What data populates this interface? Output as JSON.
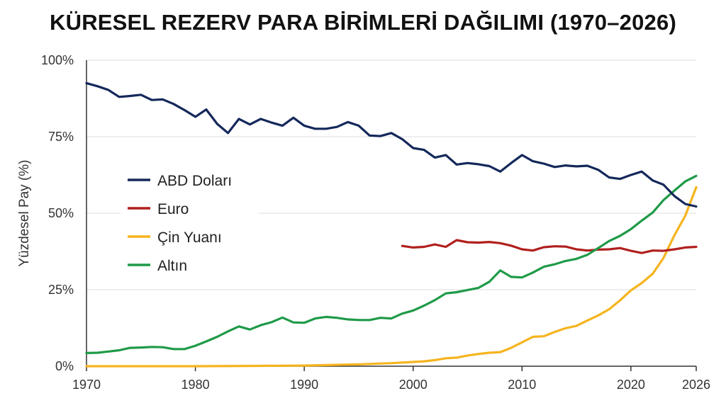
{
  "chart_data": {
    "type": "line",
    "title": "KÜRESEL REZERV PARA BİRİMLERİ DAĞILIMI (1970–2026)",
    "xlabel": "",
    "ylabel": "Yüzdesel Pay (%)",
    "xlim": [
      1970,
      2026
    ],
    "ylim": [
      0,
      100
    ],
    "x_ticks": [
      "1970",
      "1980",
      "1990",
      "2000",
      "2010",
      "2020",
      "2026"
    ],
    "y_ticks": [
      "0%",
      "25%",
      "50%",
      "75%",
      "100%"
    ],
    "grid": "horizontal",
    "legend_position": "center-left",
    "series": [
      {
        "name": "ABD Doları",
        "color": "#14285a",
        "x": [
          1970,
          1971,
          1972,
          1973,
          1974,
          1975,
          1976,
          1977,
          1978,
          1979,
          1980,
          1981,
          1982,
          1983,
          1984,
          1985,
          1986,
          1987,
          1988,
          1989,
          1990,
          1991,
          1992,
          1993,
          1994,
          1995,
          1996,
          1997,
          1998,
          1999,
          2000,
          2001,
          2002,
          2003,
          2004,
          2005,
          2006,
          2007,
          2008,
          2009,
          2010,
          2011,
          2012,
          2013,
          2014,
          2015,
          2016,
          2017,
          2018,
          2019,
          2020,
          2021,
          2022,
          2023,
          2024,
          2025,
          2026
        ],
        "values": [
          92.5,
          91.5,
          90.3,
          88,
          88.3,
          88.7,
          87,
          87.2,
          85.7,
          83.7,
          81.5,
          83.9,
          79.2,
          76.2,
          80.8,
          79,
          80.8,
          79.6,
          78.6,
          81.2,
          78.6,
          77.6,
          77.6,
          78.2,
          79.8,
          78.6,
          75.4,
          75.2,
          76.2,
          74.2,
          71.3,
          70.7,
          68.2,
          69,
          65.9,
          66.4,
          66,
          65.4,
          63.6,
          66.4,
          69,
          67,
          66.2,
          65.1,
          65.6,
          65.3,
          65.5,
          64.2,
          61.7,
          61.2,
          62.5,
          63.6,
          60.7,
          59.3,
          55.6,
          53,
          52.2
        ]
      },
      {
        "name": "Euro",
        "color": "#b0201e",
        "x": [
          1999,
          2000,
          2001,
          2002,
          2003,
          2004,
          2005,
          2006,
          2007,
          2008,
          2009,
          2010,
          2011,
          2012,
          2013,
          2014,
          2015,
          2016,
          2017,
          2018,
          2019,
          2020,
          2021,
          2022,
          2023,
          2024,
          2025,
          2026
        ],
        "values": [
          39.3,
          38.8,
          39,
          39.8,
          39,
          41.2,
          40.5,
          40.4,
          40.6,
          40.2,
          39.4,
          38.2,
          37.8,
          38.9,
          39.2,
          39.1,
          38.2,
          37.8,
          38.1,
          38.2,
          38.6,
          37.7,
          37,
          37.8,
          37.7,
          38.2,
          38.8,
          39
        ]
      },
      {
        "name": "Çin Yuanı",
        "color": "#f5b41e",
        "x": [
          1970,
          1975,
          1980,
          1985,
          1990,
          1995,
          1998,
          2000,
          2001,
          2002,
          2003,
          2004,
          2005,
          2006,
          2007,
          2008,
          2009,
          2010,
          2011,
          2012,
          2013,
          2014,
          2015,
          2016,
          2017,
          2018,
          2019,
          2020,
          2021,
          2022,
          2023,
          2024,
          2025,
          2026
        ],
        "values": [
          0,
          0,
          0,
          0.1,
          0.2,
          0.6,
          1,
          1.4,
          1.6,
          2,
          2.6,
          2.8,
          3.5,
          4,
          4.4,
          4.6,
          6,
          7.8,
          9.6,
          9.8,
          11.2,
          12.4,
          13.2,
          14.9,
          16.6,
          18.6,
          21.5,
          24.8,
          27.2,
          30.2,
          35.4,
          42.8,
          49.2,
          58.5
        ]
      },
      {
        "name": "Altın",
        "color": "#1f9a48",
        "x": [
          1970,
          1971,
          1972,
          1973,
          1974,
          1975,
          1976,
          1977,
          1978,
          1979,
          1980,
          1981,
          1982,
          1983,
          1984,
          1985,
          1986,
          1987,
          1988,
          1989,
          1990,
          1991,
          1992,
          1993,
          1994,
          1995,
          1996,
          1997,
          1998,
          1999,
          2000,
          2001,
          2002,
          2003,
          2004,
          2005,
          2006,
          2007,
          2008,
          2009,
          2010,
          2011,
          2012,
          2013,
          2014,
          2015,
          2016,
          2017,
          2018,
          2019,
          2020,
          2021,
          2022,
          2023,
          2024,
          2025,
          2026
        ],
        "values": [
          4.3,
          4.4,
          4.8,
          5.2,
          6,
          6.1,
          6.3,
          6.2,
          5.6,
          5.6,
          6.7,
          8.1,
          9.6,
          11.4,
          13,
          12,
          13.4,
          14.4,
          15.9,
          14.3,
          14.2,
          15.6,
          16.1,
          15.8,
          15.3,
          15.1,
          15.1,
          15.8,
          15.6,
          17.2,
          18.2,
          19.8,
          21.6,
          23.8,
          24.2,
          24.9,
          25.6,
          27.6,
          31.3,
          29.2,
          29,
          30.6,
          32.5,
          33.3,
          34.4,
          35.1,
          36.4,
          38.6,
          40.9,
          42.6,
          44.8,
          47.6,
          50.2,
          54.3,
          57.4,
          60.4,
          62.2
        ]
      }
    ]
  }
}
